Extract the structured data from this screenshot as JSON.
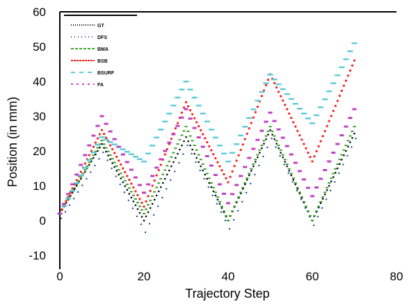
{
  "chart_data": {
    "type": "line",
    "title": "",
    "xlabel": "Trajectory Step",
    "ylabel": "Position (in mm)",
    "xlim": [
      0,
      80
    ],
    "ylim": [
      -10,
      60
    ],
    "xticks": [
      0,
      20,
      40,
      60,
      80
    ],
    "yticks": [
      -10,
      0,
      10,
      20,
      30,
      40,
      50,
      60
    ],
    "grid": false,
    "legend_position": "top-left",
    "series": [
      {
        "name": "GT",
        "color": "#000000",
        "style": "dotted-dense",
        "points": [
          [
            0,
            2
          ],
          [
            10,
            22
          ],
          [
            20,
            0
          ],
          [
            30,
            24
          ],
          [
            40,
            0
          ],
          [
            50,
            26
          ],
          [
            60,
            0
          ],
          [
            70,
            25
          ]
        ]
      },
      {
        "name": "DFS",
        "color": "#1f4fa0",
        "style": "dotted-sparse",
        "points": [
          [
            0,
            1
          ],
          [
            10,
            20
          ],
          [
            20,
            -3
          ],
          [
            30,
            22
          ],
          [
            40,
            -2
          ],
          [
            50,
            24
          ],
          [
            60,
            -1
          ],
          [
            70,
            24
          ]
        ]
      },
      {
        "name": "BMA",
        "color": "#3aa02a",
        "style": "dash-dot",
        "points": [
          [
            0,
            2
          ],
          [
            10,
            23
          ],
          [
            20,
            2
          ],
          [
            30,
            27
          ],
          [
            40,
            0
          ],
          [
            50,
            27
          ],
          [
            60,
            0
          ],
          [
            70,
            27
          ]
        ]
      },
      {
        "name": "BSB",
        "color": "#ff1a1a",
        "style": "dotted-star",
        "points": [
          [
            0,
            2
          ],
          [
            10,
            26
          ],
          [
            20,
            4
          ],
          [
            30,
            34
          ],
          [
            40,
            11
          ],
          [
            50,
            42
          ],
          [
            60,
            17
          ],
          [
            70,
            46
          ]
        ]
      },
      {
        "name": "BSURF",
        "color": "#5ac8d8",
        "style": "dashed",
        "points": [
          [
            0,
            2
          ],
          [
            10,
            24
          ],
          [
            20,
            17
          ],
          [
            30,
            40
          ],
          [
            40,
            17
          ],
          [
            50,
            42
          ],
          [
            60,
            28
          ],
          [
            70,
            51
          ]
        ]
      },
      {
        "name": "FA",
        "color": "#c040c0",
        "style": "dash-square",
        "points": [
          [
            0,
            2
          ],
          [
            10,
            30
          ],
          [
            20,
            8
          ],
          [
            30,
            32
          ],
          [
            40,
            5
          ],
          [
            50,
            31
          ],
          [
            60,
            7
          ],
          [
            70,
            32
          ]
        ]
      }
    ]
  }
}
